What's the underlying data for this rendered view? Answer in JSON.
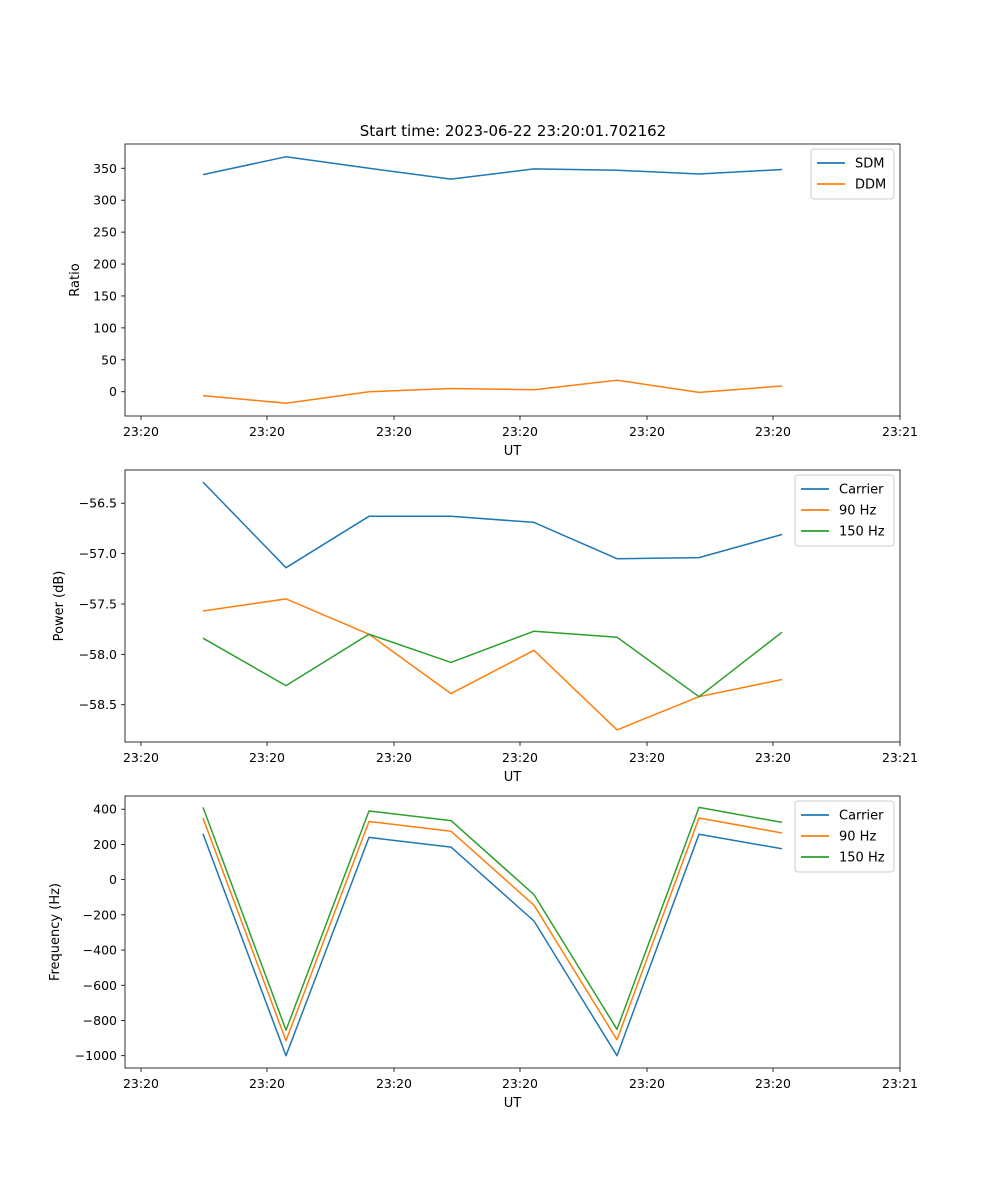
{
  "figure": {
    "title": "Start time: 2023-06-22 23:20:01.702162"
  },
  "chart_data": [
    {
      "type": "line",
      "xlabel": "UT",
      "ylabel": "Ratio",
      "xticklabels": [
        "23:20",
        "23:20",
        "23:20",
        "23:20",
        "23:20",
        "23:20",
        "23:21"
      ],
      "yticks": [
        0,
        50,
        100,
        150,
        200,
        250,
        300,
        350
      ],
      "ylim": [
        -38,
        388
      ],
      "legend_position": "top-right",
      "series": [
        {
          "name": "SDM",
          "color": "#1f77b4",
          "values": [
            340,
            368,
            350,
            333,
            349,
            347,
            341,
            348
          ]
        },
        {
          "name": "DDM",
          "color": "#ff7f0e",
          "values": [
            -6,
            -18,
            0,
            5,
            3,
            18,
            -1,
            9
          ]
        }
      ]
    },
    {
      "type": "line",
      "xlabel": "UT",
      "ylabel": "Power (dB)",
      "xticklabels": [
        "23:20",
        "23:20",
        "23:20",
        "23:20",
        "23:20",
        "23:20",
        "23:21"
      ],
      "yticks": [
        -58.5,
        -58.0,
        -57.5,
        -57.0,
        -56.5
      ],
      "yticklabels": [
        "−58.5",
        "−58.0",
        "−57.5",
        "−57.0",
        "−56.5"
      ],
      "ylim": [
        -58.87,
        -56.17
      ],
      "legend_position": "top-right",
      "series": [
        {
          "name": "Carrier",
          "color": "#1f77b4",
          "values": [
            -56.29,
            -57.14,
            -56.63,
            -56.63,
            -56.69,
            -57.05,
            -57.04,
            -56.81
          ]
        },
        {
          "name": "90 Hz",
          "color": "#ff7f0e",
          "values": [
            -57.57,
            -57.45,
            -57.8,
            -58.39,
            -57.96,
            -58.75,
            -58.42,
            -58.25
          ]
        },
        {
          "name": "150 Hz",
          "color": "#2ca02c",
          "values": [
            -57.84,
            -58.31,
            -57.8,
            -58.08,
            -57.77,
            -57.83,
            -58.42,
            -57.78
          ]
        }
      ]
    },
    {
      "type": "line",
      "xlabel": "UT",
      "ylabel": "Frequency (Hz)",
      "xticklabels": [
        "23:20",
        "23:20",
        "23:20",
        "23:20",
        "23:20",
        "23:20",
        "23:21"
      ],
      "yticks": [
        -1000,
        -800,
        -600,
        -400,
        -200,
        0,
        200,
        400
      ],
      "yticklabels": [
        "−1000",
        "−800",
        "−600",
        "−400",
        "−200",
        "0",
        "200",
        "400"
      ],
      "ylim": [
        -1070,
        475
      ],
      "legend_position": "top-right",
      "series": [
        {
          "name": "Carrier",
          "color": "#1f77b4",
          "values": [
            260,
            -1000,
            240,
            185,
            -235,
            -1000,
            258,
            175
          ]
        },
        {
          "name": "90 Hz",
          "color": "#ff7f0e",
          "values": [
            350,
            -915,
            330,
            275,
            -145,
            -910,
            350,
            265
          ]
        },
        {
          "name": "150 Hz",
          "color": "#2ca02c",
          "values": [
            410,
            -855,
            390,
            335,
            -85,
            -850,
            410,
            325
          ]
        }
      ]
    }
  ]
}
